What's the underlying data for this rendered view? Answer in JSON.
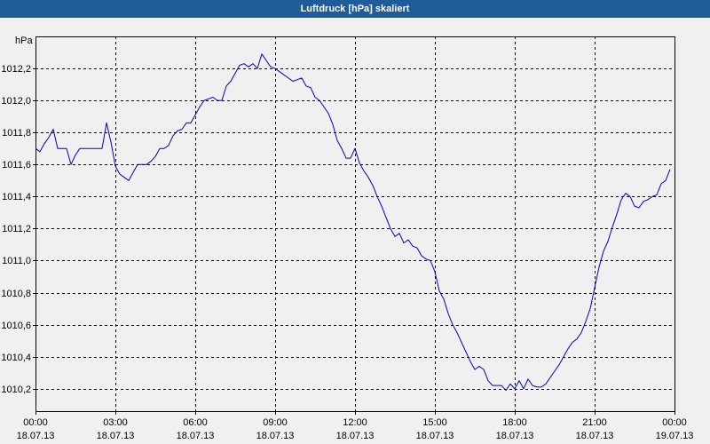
{
  "colors": {
    "title_bar": "#1f5c99",
    "title_text": "#ffffff",
    "background": "#f0f0f0",
    "plot_border": "#000000",
    "grid": "#000000",
    "series": "#0000c8"
  },
  "chart_data": {
    "type": "line",
    "title": "Luftdruck [hPa] skaliert",
    "ylabel": "hPa",
    "xlim": [
      "18.07.13 00:00",
      "19.07.13 00:00"
    ],
    "ylim": [
      1010.06,
      1012.4
    ],
    "grid": true,
    "x_ticks": [
      {
        "time": "00:00",
        "date": "18.07.13"
      },
      {
        "time": "03:00",
        "date": "18.07.13"
      },
      {
        "time": "06:00",
        "date": "18.07.13"
      },
      {
        "time": "09:00",
        "date": "18.07.13"
      },
      {
        "time": "12:00",
        "date": "18.07.13"
      },
      {
        "time": "15:00",
        "date": "18.07.13"
      },
      {
        "time": "18:00",
        "date": "18.07.13"
      },
      {
        "time": "21:00",
        "date": "18.07.13"
      },
      {
        "time": "00:00",
        "date": "19.07.13"
      }
    ],
    "y_ticks": [
      {
        "value": 1012.2,
        "label": "1012,2"
      },
      {
        "value": 1012.0,
        "label": "1012,0"
      },
      {
        "value": 1011.8,
        "label": "1011,8"
      },
      {
        "value": 1011.6,
        "label": "1011,6"
      },
      {
        "value": 1011.4,
        "label": "1011,4"
      },
      {
        "value": 1011.2,
        "label": "1011,2"
      },
      {
        "value": 1011.0,
        "label": "1011,0"
      },
      {
        "value": 1010.8,
        "label": "1010,8"
      },
      {
        "value": 1010.6,
        "label": "1010,6"
      },
      {
        "value": 1010.4,
        "label": "1010,4"
      },
      {
        "value": 1010.2,
        "label": "1010,2"
      }
    ],
    "x": [
      "18.07.13 00:00",
      "18.07.13 00:10",
      "18.07.13 00:20",
      "18.07.13 00:30",
      "18.07.13 00:40",
      "18.07.13 00:50",
      "18.07.13 01:00",
      "18.07.13 01:10",
      "18.07.13 01:20",
      "18.07.13 01:30",
      "18.07.13 01:40",
      "18.07.13 01:50",
      "18.07.13 02:00",
      "18.07.13 02:10",
      "18.07.13 02:20",
      "18.07.13 02:30",
      "18.07.13 02:40",
      "18.07.13 02:50",
      "18.07.13 03:00",
      "18.07.13 03:10",
      "18.07.13 03:20",
      "18.07.13 03:30",
      "18.07.13 03:40",
      "18.07.13 03:50",
      "18.07.13 04:00",
      "18.07.13 04:10",
      "18.07.13 04:20",
      "18.07.13 04:30",
      "18.07.13 04:40",
      "18.07.13 04:50",
      "18.07.13 05:00",
      "18.07.13 05:10",
      "18.07.13 05:20",
      "18.07.13 05:30",
      "18.07.13 05:40",
      "18.07.13 05:50",
      "18.07.13 06:00",
      "18.07.13 06:10",
      "18.07.13 06:20",
      "18.07.13 06:30",
      "18.07.13 06:40",
      "18.07.13 06:50",
      "18.07.13 07:00",
      "18.07.13 07:10",
      "18.07.13 07:20",
      "18.07.13 07:30",
      "18.07.13 07:40",
      "18.07.13 07:50",
      "18.07.13 08:00",
      "18.07.13 08:10",
      "18.07.13 08:20",
      "18.07.13 08:30",
      "18.07.13 08:40",
      "18.07.13 08:50",
      "18.07.13 09:00",
      "18.07.13 09:10",
      "18.07.13 09:20",
      "18.07.13 09:30",
      "18.07.13 09:40",
      "18.07.13 09:50",
      "18.07.13 10:00",
      "18.07.13 10:10",
      "18.07.13 10:20",
      "18.07.13 10:30",
      "18.07.13 10:40",
      "18.07.13 10:50",
      "18.07.13 11:00",
      "18.07.13 11:10",
      "18.07.13 11:20",
      "18.07.13 11:30",
      "18.07.13 11:40",
      "18.07.13 11:50",
      "18.07.13 12:00",
      "18.07.13 12:10",
      "18.07.13 12:20",
      "18.07.13 12:30",
      "18.07.13 12:40",
      "18.07.13 12:50",
      "18.07.13 13:00",
      "18.07.13 13:10",
      "18.07.13 13:20",
      "18.07.13 13:30",
      "18.07.13 13:40",
      "18.07.13 13:50",
      "18.07.13 14:00",
      "18.07.13 14:10",
      "18.07.13 14:20",
      "18.07.13 14:30",
      "18.07.13 14:40",
      "18.07.13 14:50",
      "18.07.13 15:00",
      "18.07.13 15:10",
      "18.07.13 15:20",
      "18.07.13 15:30",
      "18.07.13 15:40",
      "18.07.13 15:50",
      "18.07.13 16:00",
      "18.07.13 16:10",
      "18.07.13 16:20",
      "18.07.13 16:30",
      "18.07.13 16:40",
      "18.07.13 16:50",
      "18.07.13 17:00",
      "18.07.13 17:10",
      "18.07.13 17:20",
      "18.07.13 17:30",
      "18.07.13 17:40",
      "18.07.13 17:50",
      "18.07.13 18:00",
      "18.07.13 18:10",
      "18.07.13 18:20",
      "18.07.13 18:30",
      "18.07.13 18:40",
      "18.07.13 18:50",
      "18.07.13 19:00",
      "18.07.13 19:10",
      "18.07.13 19:20",
      "18.07.13 19:30",
      "18.07.13 19:40",
      "18.07.13 19:50",
      "18.07.13 20:00",
      "18.07.13 20:10",
      "18.07.13 20:20",
      "18.07.13 20:30",
      "18.07.13 20:40",
      "18.07.13 20:50",
      "18.07.13 21:00",
      "18.07.13 21:10",
      "18.07.13 21:20",
      "18.07.13 21:30",
      "18.07.13 21:40",
      "18.07.13 21:50",
      "18.07.13 22:00",
      "18.07.13 22:10",
      "18.07.13 22:20",
      "18.07.13 22:30",
      "18.07.13 22:40",
      "18.07.13 22:50",
      "18.07.13 23:00",
      "18.07.13 23:10",
      "18.07.13 23:20",
      "18.07.13 23:30",
      "18.07.13 23:40",
      "18.07.13 23:50"
    ],
    "y": [
      1011.7,
      1011.68,
      1011.73,
      1011.77,
      1011.82,
      1011.7,
      1011.7,
      1011.7,
      1011.6,
      1011.66,
      1011.7,
      1011.7,
      1011.7,
      1011.7,
      1011.7,
      1011.7,
      1011.86,
      1011.74,
      1011.59,
      1011.54,
      1011.52,
      1011.5,
      1011.55,
      1011.6,
      1011.6,
      1011.6,
      1011.62,
      1011.65,
      1011.7,
      1011.7,
      1011.72,
      1011.78,
      1011.81,
      1011.82,
      1011.86,
      1011.86,
      1011.91,
      1011.96,
      1012.0,
      1012.01,
      1012.02,
      1012.0,
      1012.0,
      1012.09,
      1012.12,
      1012.17,
      1012.22,
      1012.23,
      1012.21,
      1012.23,
      1012.2,
      1012.29,
      1012.25,
      1012.21,
      1012.2,
      1012.18,
      1012.16,
      1012.14,
      1012.12,
      1012.13,
      1012.14,
      1012.09,
      1012.08,
      1012.02,
      1012.0,
      1011.96,
      1011.92,
      1011.85,
      1011.75,
      1011.7,
      1011.64,
      1011.64,
      1011.7,
      1011.61,
      1011.56,
      1011.52,
      1011.47,
      1011.4,
      1011.34,
      1011.27,
      1011.2,
      1011.15,
      1011.17,
      1011.11,
      1011.13,
      1011.09,
      1011.08,
      1011.03,
      1011.01,
      1011.0,
      1010.93,
      1010.81,
      1010.76,
      1010.67,
      1010.6,
      1010.55,
      1010.49,
      1010.43,
      1010.37,
      1010.32,
      1010.34,
      1010.32,
      1010.25,
      1010.22,
      1010.22,
      1010.22,
      1010.19,
      1010.23,
      1010.2,
      1010.25,
      1010.2,
      1010.26,
      1010.22,
      1010.21,
      1010.21,
      1010.23,
      1010.27,
      1010.31,
      1010.35,
      1010.4,
      1010.45,
      1010.49,
      1010.51,
      1010.55,
      1010.62,
      1010.7,
      1010.83,
      1010.96,
      1011.06,
      1011.12,
      1011.21,
      1011.29,
      1011.38,
      1011.42,
      1011.4,
      1011.34,
      1011.33,
      1011.37,
      1011.38,
      1011.4,
      1011.41,
      1011.48,
      1011.5,
      1011.57
    ]
  }
}
